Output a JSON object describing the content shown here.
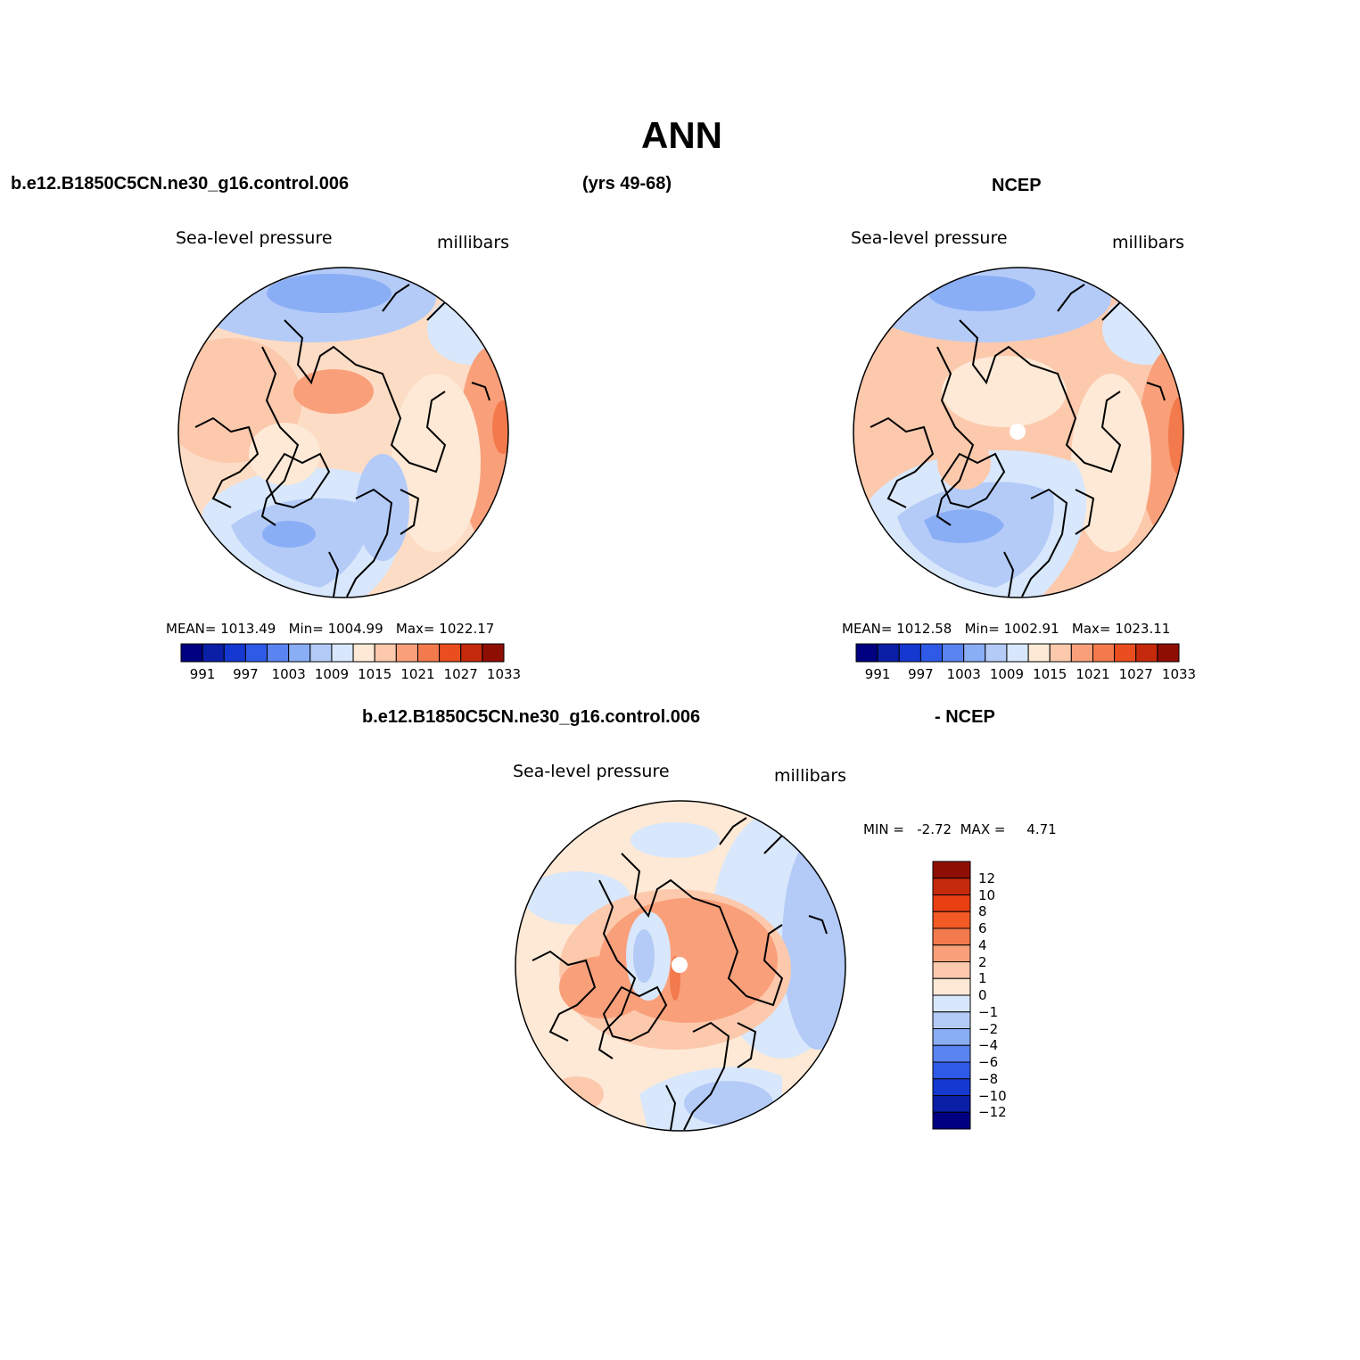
{
  "title": "ANN",
  "header_left": "b.e12.B1850C5CN.ne30_g16.control.006",
  "header_mid": "(yrs 49-68)",
  "header_right": "NCEP",
  "diff_header_left": "b.e12.B1850C5CN.ne30_g16.control.006",
  "diff_header_right": "- NCEP",
  "variable": "Sea-level pressure",
  "units": "millibars",
  "colors": {
    "abs_scale": [
      "#000080",
      "#0a1fa6",
      "#1438d0",
      "#2f5ae8",
      "#5a84f0",
      "#8aaef5",
      "#b4cbf8",
      "#d8e7fb",
      "#fde9d6",
      "#fcc9ad",
      "#f9a07b",
      "#f37a4d",
      "#ea4e1f",
      "#c62a0c",
      "#8f0e04"
    ],
    "diff_scale": [
      "#000080",
      "#0a1fa6",
      "#1438d0",
      "#2f5ae8",
      "#5a84f0",
      "#8aaef5",
      "#b4cbf8",
      "#d8e7fb",
      "#fde9d6",
      "#fcc9ad",
      "#f9a07b",
      "#f37a4d",
      "#f35a26",
      "#ea3f12",
      "#c62a0c",
      "#8f0e04"
    ]
  },
  "panels": [
    {
      "id": "model",
      "stats": {
        "mean_label": "MEAN=",
        "mean": "1013.49",
        "min_label": "Min=",
        "min": "1004.99",
        "max_label": "Max=",
        "max": "1022.17"
      },
      "colorbar_labels": [
        "991",
        "997",
        "1003",
        "1009",
        "1015",
        "1021",
        "1027",
        "1033"
      ]
    },
    {
      "id": "ncep",
      "stats": {
        "mean_label": "MEAN=",
        "mean": "1012.58",
        "min_label": "Min=",
        "min": "1002.91",
        "max_label": "Max=",
        "max": "1023.11"
      },
      "colorbar_labels": [
        "991",
        "997",
        "1003",
        "1009",
        "1015",
        "1021",
        "1027",
        "1033"
      ]
    }
  ],
  "difference": {
    "min_label": "MIN =",
    "min": "-2.72",
    "max_label": "MAX =",
    "max": "4.71",
    "colorbar_labels": [
      "12",
      "10",
      "8",
      "6",
      "4",
      "2",
      "1",
      "0",
      "-1",
      "-2",
      "-4",
      "-6",
      "-8",
      "-10",
      "-12"
    ]
  }
}
